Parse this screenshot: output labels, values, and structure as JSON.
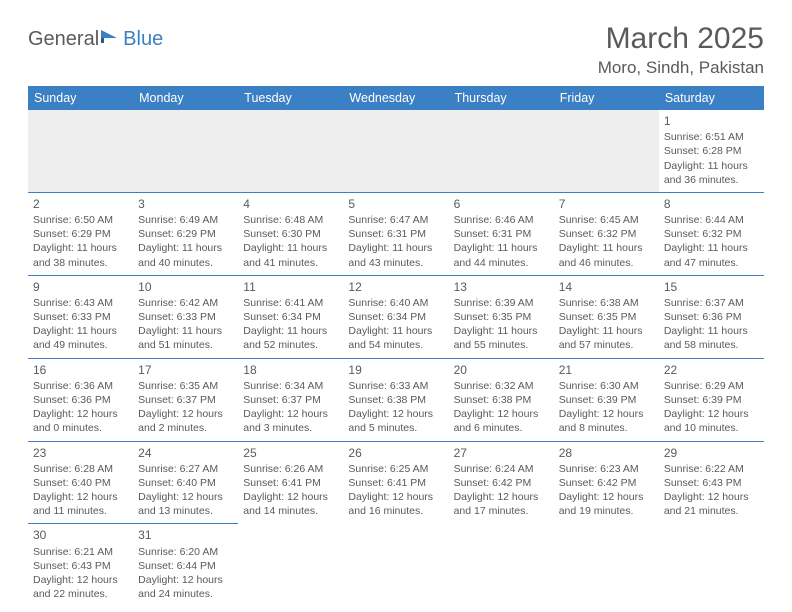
{
  "brand": {
    "name1": "General",
    "name2": "Blue"
  },
  "title": "March 2025",
  "location": "Moro, Sindh, Pakistan",
  "colors": {
    "header_bg": "#3b7fc4",
    "header_text": "#ffffff",
    "cell_border": "#3b7fc4",
    "text": "#5a5a5a",
    "page_bg": "#ffffff",
    "empty_bg": "#eeeeee"
  },
  "fonts": {
    "title_size_pt": 23,
    "location_size_pt": 13,
    "dayheader_size_pt": 10,
    "cell_size_pt": 8
  },
  "day_headers": [
    "Sunday",
    "Monday",
    "Tuesday",
    "Wednesday",
    "Thursday",
    "Friday",
    "Saturday"
  ],
  "weeks": [
    [
      null,
      null,
      null,
      null,
      null,
      null,
      {
        "n": "1",
        "sunrise": "Sunrise: 6:51 AM",
        "sunset": "Sunset: 6:28 PM",
        "daylight": "Daylight: 11 hours and 36 minutes."
      }
    ],
    [
      {
        "n": "2",
        "sunrise": "Sunrise: 6:50 AM",
        "sunset": "Sunset: 6:29 PM",
        "daylight": "Daylight: 11 hours and 38 minutes."
      },
      {
        "n": "3",
        "sunrise": "Sunrise: 6:49 AM",
        "sunset": "Sunset: 6:29 PM",
        "daylight": "Daylight: 11 hours and 40 minutes."
      },
      {
        "n": "4",
        "sunrise": "Sunrise: 6:48 AM",
        "sunset": "Sunset: 6:30 PM",
        "daylight": "Daylight: 11 hours and 41 minutes."
      },
      {
        "n": "5",
        "sunrise": "Sunrise: 6:47 AM",
        "sunset": "Sunset: 6:31 PM",
        "daylight": "Daylight: 11 hours and 43 minutes."
      },
      {
        "n": "6",
        "sunrise": "Sunrise: 6:46 AM",
        "sunset": "Sunset: 6:31 PM",
        "daylight": "Daylight: 11 hours and 44 minutes."
      },
      {
        "n": "7",
        "sunrise": "Sunrise: 6:45 AM",
        "sunset": "Sunset: 6:32 PM",
        "daylight": "Daylight: 11 hours and 46 minutes."
      },
      {
        "n": "8",
        "sunrise": "Sunrise: 6:44 AM",
        "sunset": "Sunset: 6:32 PM",
        "daylight": "Daylight: 11 hours and 47 minutes."
      }
    ],
    [
      {
        "n": "9",
        "sunrise": "Sunrise: 6:43 AM",
        "sunset": "Sunset: 6:33 PM",
        "daylight": "Daylight: 11 hours and 49 minutes."
      },
      {
        "n": "10",
        "sunrise": "Sunrise: 6:42 AM",
        "sunset": "Sunset: 6:33 PM",
        "daylight": "Daylight: 11 hours and 51 minutes."
      },
      {
        "n": "11",
        "sunrise": "Sunrise: 6:41 AM",
        "sunset": "Sunset: 6:34 PM",
        "daylight": "Daylight: 11 hours and 52 minutes."
      },
      {
        "n": "12",
        "sunrise": "Sunrise: 6:40 AM",
        "sunset": "Sunset: 6:34 PM",
        "daylight": "Daylight: 11 hours and 54 minutes."
      },
      {
        "n": "13",
        "sunrise": "Sunrise: 6:39 AM",
        "sunset": "Sunset: 6:35 PM",
        "daylight": "Daylight: 11 hours and 55 minutes."
      },
      {
        "n": "14",
        "sunrise": "Sunrise: 6:38 AM",
        "sunset": "Sunset: 6:35 PM",
        "daylight": "Daylight: 11 hours and 57 minutes."
      },
      {
        "n": "15",
        "sunrise": "Sunrise: 6:37 AM",
        "sunset": "Sunset: 6:36 PM",
        "daylight": "Daylight: 11 hours and 58 minutes."
      }
    ],
    [
      {
        "n": "16",
        "sunrise": "Sunrise: 6:36 AM",
        "sunset": "Sunset: 6:36 PM",
        "daylight": "Daylight: 12 hours and 0 minutes."
      },
      {
        "n": "17",
        "sunrise": "Sunrise: 6:35 AM",
        "sunset": "Sunset: 6:37 PM",
        "daylight": "Daylight: 12 hours and 2 minutes."
      },
      {
        "n": "18",
        "sunrise": "Sunrise: 6:34 AM",
        "sunset": "Sunset: 6:37 PM",
        "daylight": "Daylight: 12 hours and 3 minutes."
      },
      {
        "n": "19",
        "sunrise": "Sunrise: 6:33 AM",
        "sunset": "Sunset: 6:38 PM",
        "daylight": "Daylight: 12 hours and 5 minutes."
      },
      {
        "n": "20",
        "sunrise": "Sunrise: 6:32 AM",
        "sunset": "Sunset: 6:38 PM",
        "daylight": "Daylight: 12 hours and 6 minutes."
      },
      {
        "n": "21",
        "sunrise": "Sunrise: 6:30 AM",
        "sunset": "Sunset: 6:39 PM",
        "daylight": "Daylight: 12 hours and 8 minutes."
      },
      {
        "n": "22",
        "sunrise": "Sunrise: 6:29 AM",
        "sunset": "Sunset: 6:39 PM",
        "daylight": "Daylight: 12 hours and 10 minutes."
      }
    ],
    [
      {
        "n": "23",
        "sunrise": "Sunrise: 6:28 AM",
        "sunset": "Sunset: 6:40 PM",
        "daylight": "Daylight: 12 hours and 11 minutes."
      },
      {
        "n": "24",
        "sunrise": "Sunrise: 6:27 AM",
        "sunset": "Sunset: 6:40 PM",
        "daylight": "Daylight: 12 hours and 13 minutes."
      },
      {
        "n": "25",
        "sunrise": "Sunrise: 6:26 AM",
        "sunset": "Sunset: 6:41 PM",
        "daylight": "Daylight: 12 hours and 14 minutes."
      },
      {
        "n": "26",
        "sunrise": "Sunrise: 6:25 AM",
        "sunset": "Sunset: 6:41 PM",
        "daylight": "Daylight: 12 hours and 16 minutes."
      },
      {
        "n": "27",
        "sunrise": "Sunrise: 6:24 AM",
        "sunset": "Sunset: 6:42 PM",
        "daylight": "Daylight: 12 hours and 17 minutes."
      },
      {
        "n": "28",
        "sunrise": "Sunrise: 6:23 AM",
        "sunset": "Sunset: 6:42 PM",
        "daylight": "Daylight: 12 hours and 19 minutes."
      },
      {
        "n": "29",
        "sunrise": "Sunrise: 6:22 AM",
        "sunset": "Sunset: 6:43 PM",
        "daylight": "Daylight: 12 hours and 21 minutes."
      }
    ],
    [
      {
        "n": "30",
        "sunrise": "Sunrise: 6:21 AM",
        "sunset": "Sunset: 6:43 PM",
        "daylight": "Daylight: 12 hours and 22 minutes."
      },
      {
        "n": "31",
        "sunrise": "Sunrise: 6:20 AM",
        "sunset": "Sunset: 6:44 PM",
        "daylight": "Daylight: 12 hours and 24 minutes."
      },
      null,
      null,
      null,
      null,
      null
    ]
  ]
}
